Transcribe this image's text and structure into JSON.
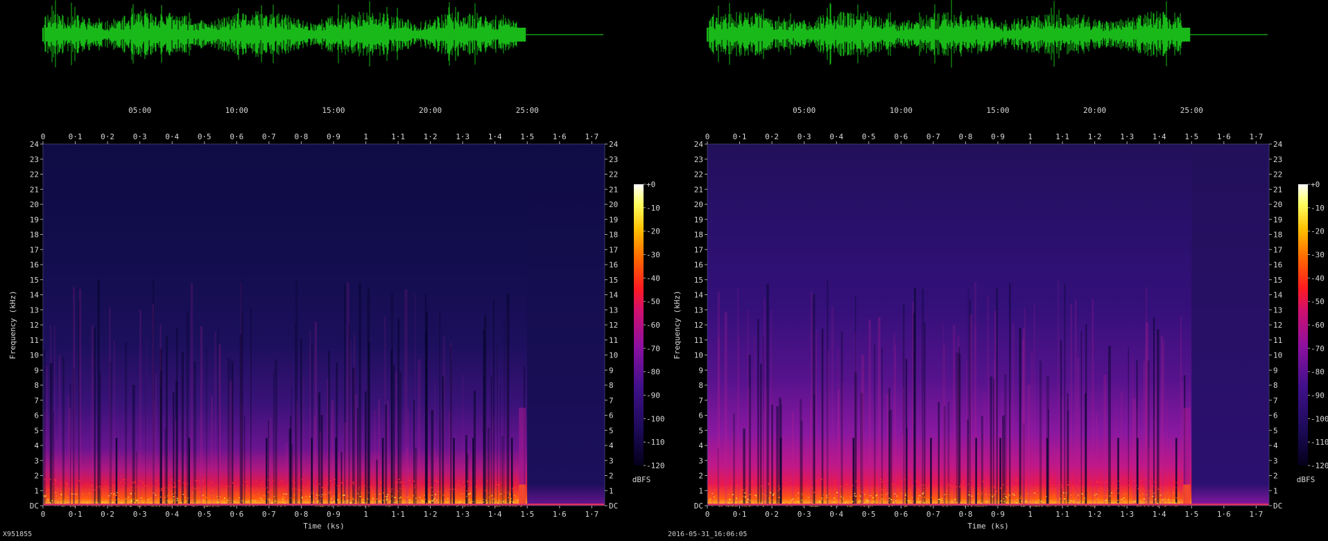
{
  "chart_data": [
    {
      "type": "heatmap",
      "subtype": "spectrogram",
      "panel": "left",
      "waveform": {
        "color": "#19b919",
        "clip_end_ks": 1.5
      },
      "timecodes": [
        "05:00",
        "10:00",
        "15:00",
        "20:00",
        "25:00"
      ],
      "timecode_values_ks": [
        0.3,
        0.6,
        0.9,
        1.2,
        1.5
      ],
      "x_ticks": [
        "0",
        "0·1",
        "0·2",
        "0·3",
        "0·4",
        "0·5",
        "0·6",
        "0·7",
        "0·8",
        "0·9",
        "1",
        "1·1",
        "1·2",
        "1·3",
        "1·4",
        "1·5",
        "1·6",
        "1·7"
      ],
      "x_tick_values": [
        0,
        0.1,
        0.2,
        0.3,
        0.4,
        0.5,
        0.6,
        0.7,
        0.8,
        0.9,
        1.0,
        1.1,
        1.2,
        1.3,
        1.4,
        1.5,
        1.6,
        1.7
      ],
      "xlim": [
        0,
        1.74
      ],
      "y_ticks": [
        "DC",
        "1",
        "2",
        "3",
        "4",
        "5",
        "6",
        "7",
        "8",
        "9",
        "10",
        "11",
        "12",
        "13",
        "14",
        "15",
        "16",
        "17",
        "18",
        "19",
        "20",
        "21",
        "22",
        "23",
        "24"
      ],
      "ylim": [
        0,
        24
      ],
      "xlabel": "Time (ks)",
      "ylabel": "Frequency (kHz)",
      "colorbar": {
        "ticks": [
          "+0",
          "-10",
          "-20",
          "-30",
          "-40",
          "-50",
          "-60",
          "-70",
          "-80",
          "-90",
          "-100",
          "-110",
          "-120"
        ],
        "range": [
          -120,
          0
        ],
        "unit": "dBFS"
      },
      "signal_end_ks": 1.5,
      "background_color": "#0f0c45"
    },
    {
      "type": "heatmap",
      "subtype": "spectrogram",
      "panel": "right",
      "waveform": {
        "color": "#19b919",
        "clip_end_ks": 1.5
      },
      "timecodes": [
        "05:00",
        "10:00",
        "15:00",
        "20:00",
        "25:00"
      ],
      "timecode_values_ks": [
        0.3,
        0.6,
        0.9,
        1.2,
        1.5
      ],
      "x_ticks": [
        "0",
        "0·1",
        "0·2",
        "0·3",
        "0·4",
        "0·5",
        "0·6",
        "0·7",
        "0·8",
        "0·9",
        "1",
        "1·1",
        "1·2",
        "1·3",
        "1·4",
        "1·5",
        "1·6",
        "1·7"
      ],
      "x_tick_values": [
        0,
        0.1,
        0.2,
        0.3,
        0.4,
        0.5,
        0.6,
        0.7,
        0.8,
        0.9,
        1.0,
        1.1,
        1.2,
        1.3,
        1.4,
        1.5,
        1.6,
        1.7
      ],
      "xlim": [
        0,
        1.74
      ],
      "y_ticks": [
        "DC",
        "1",
        "2",
        "3",
        "4",
        "5",
        "6",
        "7",
        "8",
        "9",
        "10",
        "11",
        "12",
        "13",
        "14",
        "15",
        "16",
        "17",
        "18",
        "19",
        "20",
        "21",
        "22",
        "23",
        "24"
      ],
      "ylim": [
        0,
        24
      ],
      "xlabel": "Time (ks)",
      "ylabel": "Frequency (kHz)",
      "colorbar": {
        "ticks": [
          "+0",
          "-10",
          "-20",
          "-30",
          "-40",
          "-50",
          "-60",
          "-70",
          "-80",
          "-90",
          "-100",
          "-110",
          "-120"
        ],
        "range": [
          -120,
          0
        ],
        "unit": "dBFS"
      },
      "signal_end_ks": 1.5,
      "background_color": "#22105a"
    }
  ],
  "footer": {
    "left": "X951855",
    "center": "2016-05-31_16:06:05"
  },
  "colors": {
    "waveform": "#19b919",
    "axis_frame": "#3a3a6a",
    "text": "#d8d8d8"
  }
}
